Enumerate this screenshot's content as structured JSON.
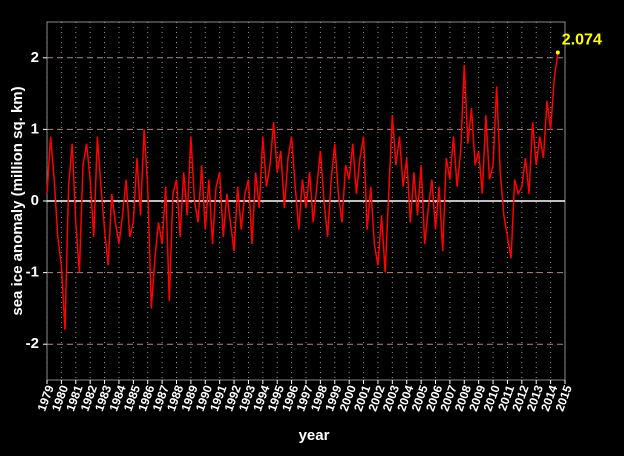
{
  "chart_data": {
    "type": "line",
    "xlabel": "year",
    "ylabel": "sea ice anomaly (million sq. km)",
    "annotation": "2.074",
    "xlim": [
      1979,
      2015
    ],
    "ylim": [
      -2.5,
      2.5
    ],
    "xticks": [
      1979,
      1980,
      1981,
      1982,
      1983,
      1984,
      1985,
      1986,
      1987,
      1988,
      1989,
      1990,
      1991,
      1992,
      1993,
      1994,
      1995,
      1996,
      1997,
      1998,
      1999,
      2000,
      2001,
      2002,
      2003,
      2004,
      2005,
      2006,
      2007,
      2008,
      2009,
      2010,
      2011,
      2012,
      2013,
      2014,
      2015
    ],
    "yticks": [
      -2,
      -1,
      0,
      1,
      2
    ],
    "grid": true,
    "x": [
      1979,
      1979.25,
      1979.5,
      1979.75,
      1980,
      1980.25,
      1980.5,
      1980.75,
      1981,
      1981.25,
      1981.5,
      1981.75,
      1982,
      1982.25,
      1982.5,
      1982.75,
      1983,
      1983.25,
      1983.5,
      1983.75,
      1984,
      1984.25,
      1984.5,
      1984.75,
      1985,
      1985.25,
      1985.5,
      1985.75,
      1986,
      1986.25,
      1986.5,
      1986.75,
      1987,
      1987.25,
      1987.5,
      1987.75,
      1988,
      1988.25,
      1988.5,
      1988.75,
      1989,
      1989.25,
      1989.5,
      1989.75,
      1990,
      1990.25,
      1990.5,
      1990.75,
      1991,
      1991.25,
      1991.5,
      1991.75,
      1992,
      1992.25,
      1992.5,
      1992.75,
      1993,
      1993.25,
      1993.5,
      1993.75,
      1994,
      1994.25,
      1994.5,
      1994.75,
      1995,
      1995.25,
      1995.5,
      1995.75,
      1996,
      1996.25,
      1996.5,
      1996.75,
      1997,
      1997.25,
      1997.5,
      1997.75,
      1998,
      1998.25,
      1998.5,
      1998.75,
      1999,
      1999.25,
      1999.5,
      1999.75,
      2000,
      2000.25,
      2000.5,
      2000.75,
      2001,
      2001.25,
      2001.5,
      2001.75,
      2002,
      2002.25,
      2002.5,
      2002.75,
      2003,
      2003.25,
      2003.5,
      2003.75,
      2004,
      2004.25,
      2004.5,
      2004.75,
      2005,
      2005.25,
      2005.5,
      2005.75,
      2006,
      2006.25,
      2006.5,
      2006.75,
      2007,
      2007.25,
      2007.5,
      2007.75,
      2008,
      2008.25,
      2008.5,
      2008.75,
      2009,
      2009.25,
      2009.5,
      2009.75,
      2010,
      2010.25,
      2010.5,
      2010.75,
      2011,
      2011.25,
      2011.5,
      2011.75,
      2012,
      2012.25,
      2012.5,
      2012.75,
      2013,
      2013.25,
      2013.5,
      2013.75,
      2014,
      2014.25,
      2014.5
    ],
    "series": [
      {
        "name": "sea ice anomaly",
        "color": "#ff0000",
        "values": [
          0.1,
          0.9,
          0.3,
          -0.5,
          -0.9,
          -1.8,
          0.2,
          0.8,
          -0.3,
          -1.0,
          0.5,
          0.8,
          0.3,
          -0.5,
          0.9,
          0.2,
          -0.4,
          -0.9,
          0.1,
          -0.3,
          -0.6,
          -0.2,
          0.3,
          -0.5,
          -0.3,
          0.6,
          -0.2,
          1.0,
          0.2,
          -1.5,
          -0.8,
          -0.3,
          -0.6,
          0.2,
          -1.4,
          0.1,
          0.3,
          -0.5,
          0.4,
          -0.2,
          0.9,
          0.0,
          -0.3,
          0.5,
          -0.4,
          0.3,
          -0.6,
          0.2,
          0.4,
          -0.5,
          0.1,
          -0.3,
          -0.7,
          0.2,
          -0.4,
          0.1,
          0.3,
          -0.6,
          0.4,
          -0.1,
          0.9,
          0.2,
          0.5,
          1.1,
          0.4,
          0.7,
          -0.1,
          0.6,
          0.9,
          0.2,
          -0.4,
          0.3,
          -0.1,
          0.4,
          -0.3,
          0.2,
          0.7,
          0.0,
          -0.5,
          0.3,
          0.8,
          0.1,
          -0.3,
          0.5,
          0.3,
          0.8,
          0.1,
          0.6,
          0.9,
          -0.4,
          0.2,
          -0.6,
          -0.9,
          -0.2,
          -1.0,
          0.1,
          1.2,
          0.5,
          0.9,
          0.2,
          0.6,
          -0.3,
          0.4,
          -0.2,
          0.5,
          -0.6,
          -0.1,
          0.3,
          -0.4,
          0.2,
          -0.7,
          0.6,
          0.3,
          0.9,
          0.2,
          0.7,
          1.9,
          0.8,
          1.3,
          0.5,
          0.7,
          0.1,
          1.2,
          0.3,
          0.5,
          1.6,
          0.4,
          -0.2,
          -0.5,
          -0.8,
          0.3,
          0.1,
          0.2,
          0.6,
          0.1,
          1.1,
          0.5,
          0.9,
          0.6,
          1.4,
          1.0,
          1.7,
          2.074
        ]
      }
    ]
  }
}
